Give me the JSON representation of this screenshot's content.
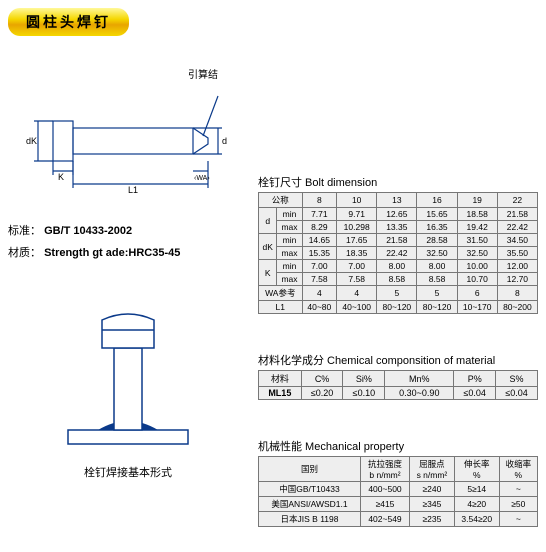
{
  "title": "圆柱头焊钉",
  "diagram1": {
    "top_label": "引算结",
    "labels": {
      "dK": "dK",
      "K": "K",
      "L1": "L1",
      "WA": "WA",
      "d": "d"
    }
  },
  "spec": {
    "standard_label": "标准：",
    "standard_value": "GB/T 10433-2002",
    "material_label": "材质：",
    "material_value": "Strength gt ade:HRC35-45"
  },
  "diagram2_caption": "栓钉焊接基本形式",
  "bolt_table": {
    "title": "栓钉尺寸 Bolt dimension",
    "nominal_label": "公称",
    "cols": [
      "8",
      "10",
      "13",
      "16",
      "19",
      "22"
    ],
    "rows": [
      {
        "group": "d",
        "sub": "min",
        "vals": [
          "7.71",
          "9.71",
          "12.65",
          "15.65",
          "18.58",
          "21.58"
        ]
      },
      {
        "group": "",
        "sub": "max",
        "vals": [
          "8.29",
          "10.298",
          "13.35",
          "16.35",
          "19.42",
          "22.42"
        ]
      },
      {
        "group": "dK",
        "sub": "min",
        "vals": [
          "14.65",
          "17.65",
          "21.58",
          "28.58",
          "31.50",
          "34.50"
        ]
      },
      {
        "group": "",
        "sub": "max",
        "vals": [
          "15.35",
          "18.35",
          "22.42",
          "32.50",
          "32.50",
          "35.50"
        ]
      },
      {
        "group": "K",
        "sub": "min",
        "vals": [
          "7.00",
          "7.00",
          "8.00",
          "8.00",
          "10.00",
          "12.00"
        ]
      },
      {
        "group": "",
        "sub": "max",
        "vals": [
          "7.58",
          "7.58",
          "8.58",
          "8.58",
          "10.70",
          "12.70"
        ]
      }
    ],
    "wa_label": "WA参考",
    "wa_vals": [
      "4",
      "4",
      "5",
      "5",
      "6",
      "8"
    ],
    "l1_label": "L1",
    "l1_vals": [
      "40~80",
      "40~100",
      "80~120",
      "80~120",
      "10~170",
      "80~200"
    ]
  },
  "chem_table": {
    "title": "材料化学成分 Chemical componsition of material",
    "headers": [
      "材料",
      "C%",
      "Si%",
      "Mn%",
      "P%",
      "S%"
    ],
    "row": [
      "ML15",
      "≤0.20",
      "≤0.10",
      "0.30~0.90",
      "≤0.04",
      "≤0.04"
    ]
  },
  "mech_table": {
    "title": "机械性能 Mechanical property",
    "headers": [
      "国别",
      "抗拉强度\nb n/mm²",
      "屈服点\ns n/mm²",
      "伸长率\n%",
      "收缩率\n%"
    ],
    "rows": [
      [
        "中国GB/T10433",
        "400~500",
        "≥240",
        "5≥14",
        "~"
      ],
      [
        "美国ANSI/AWSD1.1",
        "≥415",
        "≥345",
        "4≥20",
        "≥50"
      ],
      [
        "日本JIS B 1198",
        "402~549",
        "≥235",
        "3.54≥20",
        "~"
      ]
    ]
  },
  "colors": {
    "stroke": "#0b3a8a",
    "fill_light": "#dbe6f7"
  }
}
